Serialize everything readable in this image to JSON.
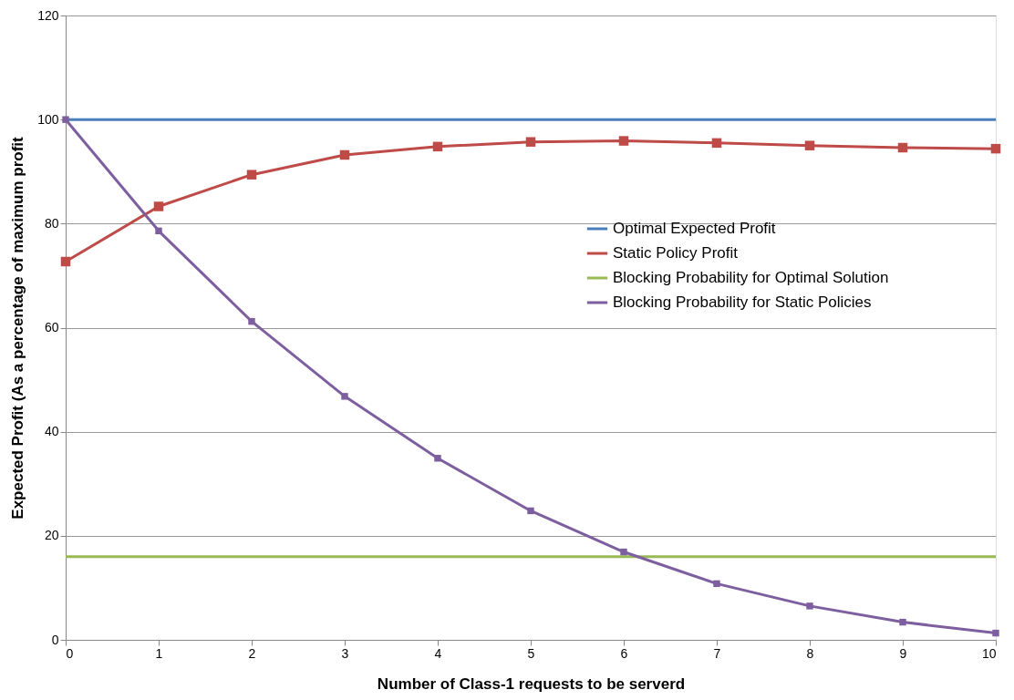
{
  "chart_data": {
    "type": "line",
    "xlabel": "Number of Class-1 requests to be serverd",
    "ylabel": "Expected Profit (As a percentage of maximum profit",
    "x": [
      0,
      1,
      2,
      3,
      4,
      5,
      6,
      7,
      8,
      9,
      10
    ],
    "series": [
      {
        "name": "Optimal Expected Profit",
        "color": "#4a7ebb",
        "marker": "none",
        "values": [
          100,
          100,
          100,
          100,
          100,
          100,
          100,
          100,
          100,
          100,
          100
        ]
      },
      {
        "name": "Static Policy Profit",
        "color": "#be4b48",
        "marker": "square",
        "values": [
          72.7,
          83.3,
          89.4,
          93.2,
          94.8,
          95.7,
          95.9,
          95.5,
          95.0,
          94.6,
          94.4
        ]
      },
      {
        "name": "Blocking Probability for Optimal Solution",
        "color": "#98b954",
        "marker": "none",
        "values": [
          16,
          16,
          16,
          16,
          16,
          16,
          16,
          16,
          16,
          16,
          16
        ]
      },
      {
        "name": "Blocking Probability for Static Policies",
        "color": "#7d5fa0",
        "marker": "square",
        "values": [
          100,
          78.6,
          61.2,
          46.8,
          34.9,
          24.8,
          16.9,
          10.8,
          6.5,
          3.4,
          1.3
        ]
      }
    ],
    "xlim": [
      0,
      10
    ],
    "xticks": [
      0,
      1,
      2,
      3,
      4,
      5,
      6,
      7,
      8,
      9,
      10
    ],
    "ylim": [
      0,
      120
    ],
    "yticks": [
      0,
      20,
      40,
      60,
      80,
      100,
      120
    ],
    "grid": "y",
    "legend": "right"
  }
}
